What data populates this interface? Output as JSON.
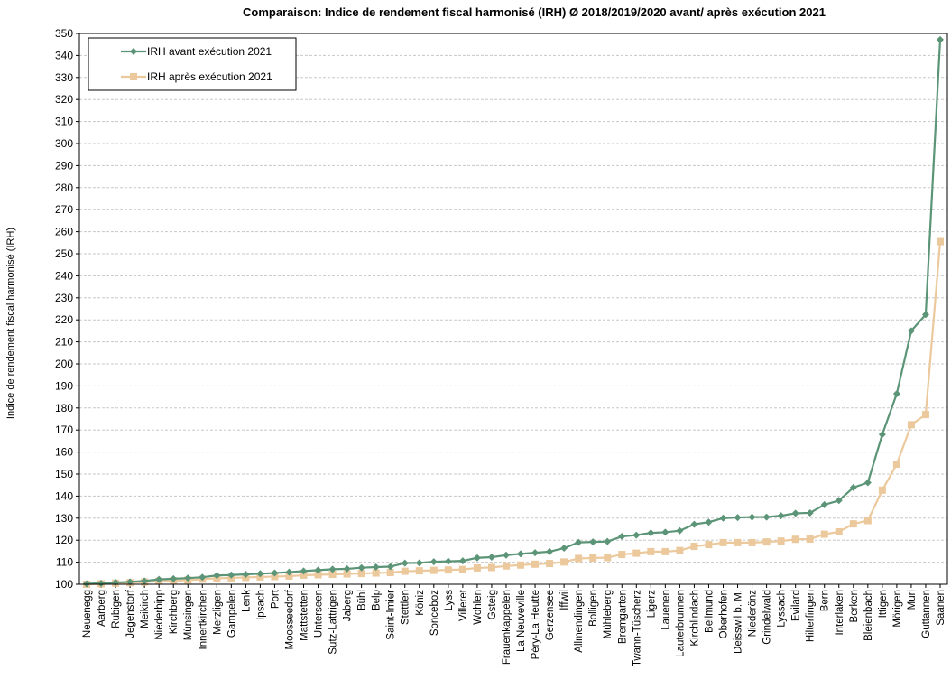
{
  "chart_data": {
    "type": "line",
    "title": "Comparaison: Indice de rendement fiscal harmonisé (IRH) Ø 2018/2019/2020 avant/ après exécution 2021",
    "ylabel": "Indice de rendement fiscal harmonisé (IRH)",
    "xlabel": "",
    "ylim": [
      100,
      350
    ],
    "ytick_step": 10,
    "grid": "horizontal dashed",
    "legend_position": "top-left",
    "colors": {
      "before": "#5b9476",
      "after": "#ecc99c"
    },
    "categories": [
      "Neuenegg",
      "Aarberg",
      "Rubigen",
      "Jegenstorf",
      "Meikirch",
      "Niederbipp",
      "Kirchberg",
      "Münsingen",
      "Innertkirchen",
      "Merzligen",
      "Gampelen",
      "Lenk",
      "Ipsach",
      "Port",
      "Moosseedorf",
      "Mattstetten",
      "Unterseen",
      "Sutz-Lattrigen",
      "Jaberg",
      "Bühl",
      "Belp",
      "Saint-Imier",
      "Stettlen",
      "Köniz",
      "Sonceboz",
      "Lyss",
      "Villeret",
      "Wohlen",
      "Gsteig",
      "Frauenkappelen",
      "La Neuveville",
      "Péry-La Heutte",
      "Gerzensee",
      "Iffwil",
      "Allmendingen",
      "Bolligen",
      "Mühleberg",
      "Bremgarten",
      "Twann-Tüscherz",
      "Ligerz",
      "Lauenen",
      "Lauterbrunnen",
      "Kirchlindach",
      "Bellmund",
      "Oberhofen",
      "Deisswil b. M.",
      "Niederönz",
      "Grindelwald",
      "Lyssach",
      "Evilard",
      "Hilterfingen",
      "Bern",
      "Interlaken",
      "Berken",
      "Bleienbach",
      "Ittigen",
      "Mörigen",
      "Muri",
      "Guttannen",
      "Saanen"
    ],
    "series": [
      {
        "name": "IRH avant exécution 2021",
        "marker": "diamond",
        "values": [
          100.2,
          100.4,
          100.8,
          101.1,
          101.5,
          102.2,
          102.5,
          102.8,
          103.2,
          104.0,
          104.2,
          104.5,
          104.8,
          105.1,
          105.5,
          106.0,
          106.4,
          106.8,
          107.0,
          107.5,
          107.8,
          108.0,
          109.6,
          109.7,
          110.2,
          110.4,
          110.6,
          112.0,
          112.3,
          113.2,
          113.8,
          114.3,
          114.8,
          116.4,
          119.0,
          119.2,
          119.4,
          121.7,
          122.3,
          123.3,
          123.6,
          124.3,
          127.2,
          128.2,
          130.0,
          130.3,
          130.5,
          130.5,
          131.1,
          132.2,
          132.4,
          136.1,
          138.0,
          143.9,
          146.1,
          168.0,
          186.5,
          215.0,
          222.4,
          347.2
        ]
      },
      {
        "name": "IRH après exécution 2021",
        "marker": "square",
        "values": [
          100.0,
          100.2,
          100.5,
          100.7,
          101.0,
          101.4,
          101.6,
          101.9,
          102.3,
          102.7,
          102.9,
          103.1,
          103.3,
          103.5,
          103.7,
          104.1,
          104.3,
          104.5,
          104.7,
          104.9,
          105.1,
          105.3,
          105.9,
          106.1,
          106.3,
          106.5,
          106.7,
          107.4,
          107.6,
          108.3,
          108.7,
          109.1,
          109.4,
          110.1,
          111.7,
          111.9,
          112.1,
          113.5,
          114.1,
          114.8,
          114.8,
          115.3,
          117.2,
          118.0,
          118.9,
          118.9,
          118.9,
          119.2,
          119.6,
          120.4,
          120.5,
          122.7,
          123.8,
          127.4,
          128.9,
          142.7,
          154.5,
          172.4,
          177.0,
          255.5
        ]
      }
    ]
  }
}
